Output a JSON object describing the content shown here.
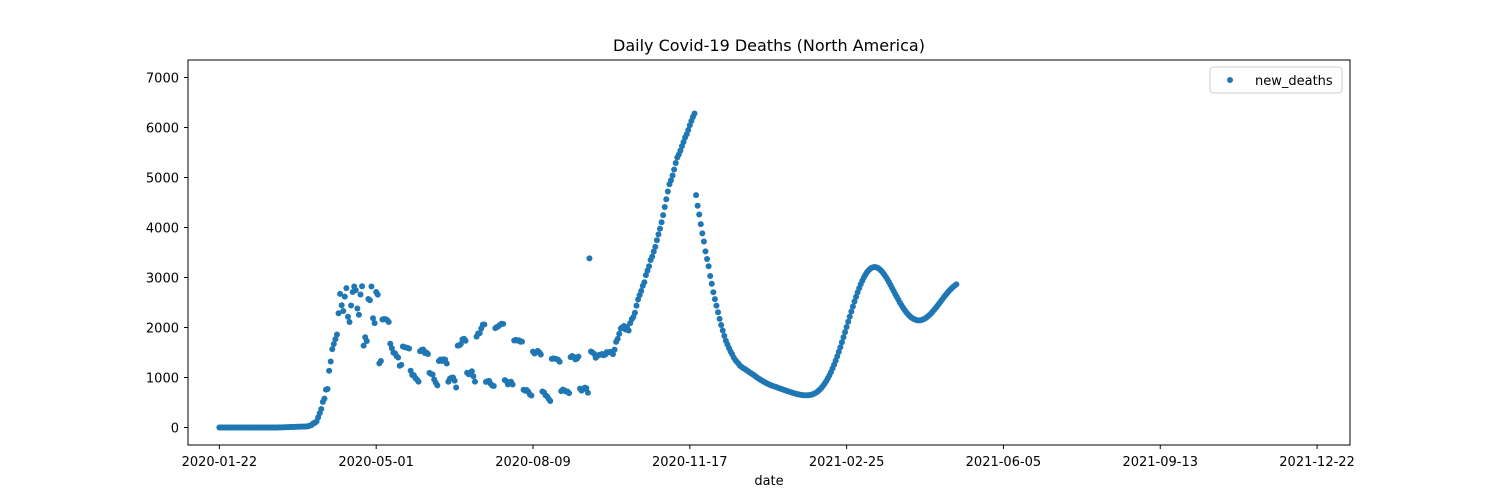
{
  "chart_data": {
    "type": "scatter",
    "title": "Daily Covid-19 Deaths (North America)",
    "xlabel": "date",
    "ylabel": "",
    "x_range": [
      "2020-01-02",
      "2022-01-12"
    ],
    "ylim": [
      -350,
      7350
    ],
    "x_ticks": [
      "2020-01-22",
      "2020-05-01",
      "2020-08-09",
      "2020-11-17",
      "2021-02-25",
      "2021-06-05",
      "2021-09-13",
      "2021-12-22"
    ],
    "y_ticks": [
      0,
      1000,
      2000,
      3000,
      4000,
      5000,
      6000,
      7000
    ],
    "grid": false,
    "legend_position": "top-right",
    "series": [
      {
        "name": "new_deaths",
        "color": "#1f77b4",
        "marker": "circle",
        "start_date": "2020-01-22",
        "y": [
          0,
          0,
          0,
          0,
          0,
          0,
          0,
          0,
          0,
          0,
          0,
          0,
          0,
          0,
          0,
          0,
          0,
          0,
          0,
          0,
          0,
          0,
          0,
          0,
          0,
          0,
          0,
          0,
          0,
          0,
          0,
          0,
          0,
          0,
          0,
          0,
          0,
          0,
          2,
          2,
          3,
          4,
          5,
          7,
          7,
          9,
          10,
          11,
          12,
          14,
          15,
          16,
          17,
          17,
          18,
          20,
          23,
          27,
          43,
          53,
          85,
          95,
          123,
          202,
          287,
          371,
          513,
          578,
          758,
          770,
          1134,
          1320,
          1567,
          1670,
          1767,
          1860,
          2285,
          2673,
          2445,
          2329,
          2617,
          2788,
          2216,
          2109,
          2439,
          2711,
          2819,
          2744,
          2380,
          2254,
          2660,
          2826,
          1638,
          1806,
          1729,
          2569,
          2546,
          2820,
          2185,
          2088,
          2711,
          2657,
          1283,
          1330,
          2161,
          2169,
          2164,
          2150,
          2111,
          1675,
          1585,
          1498,
          1483,
          1428,
          1399,
          1235,
          1253,
          1619,
          1608,
          1600,
          1593,
          1581,
          1135,
          1049,
          1047,
          989,
          957,
          917,
          1526,
          1553,
          1561,
          1491,
          1500,
          1470,
          1092,
          1073,
          1060,
          960,
          895,
          843,
          1331,
          1359,
          1329,
          1362,
          1358,
          1281,
          916,
          975,
          994,
          999,
          937,
          799,
          1638,
          1642,
          1670,
          1763,
          1776,
          1734,
          1095,
          1065,
          1090,
          1124,
          1025,
          917,
          1818,
          1879,
          1887,
          1980,
          2057,
          2060,
          912,
          924,
          932,
          874,
          840,
          831,
          1987,
          2010,
          2025,
          2056,
          2076,
          2072,
          947,
          928,
          863,
          892,
          914,
          859,
          1740,
          1752,
          1737,
          1745,
          1716,
          1718,
          754,
          735,
          749,
          716,
          661,
          640,
          1518,
          1479,
          1502,
          1532,
          1505,
          1460,
          720,
          702,
          645,
          622,
          573,
          529,
          1373,
          1381,
          1374,
          1368,
          1355,
          1314,
          728,
          758,
          744,
          721,
          719,
          688,
          1408,
          1430,
          1412,
          1362,
          1375,
          1418,
          777,
          738,
          767,
          798,
          786,
          694,
          3383,
          1519,
          1500,
          1473,
          1394,
          1429,
          1451,
          1458,
          1469,
          1444,
          1458,
          1508,
          1500,
          1512,
          1508,
          1467,
          1558,
          1713,
          1772,
          1872,
          1981,
          2005,
          2031,
          1961,
          2011,
          1941,
          2088,
          2168,
          2211,
          2296,
          2437,
          2560,
          2648,
          2731,
          2833,
          2904,
          3048,
          3138,
          3225,
          3349,
          3418,
          3519,
          3612,
          3746,
          3862,
          3978,
          4104,
          4247,
          4411,
          4566,
          4719,
          4866,
          4942,
          5040,
          5160,
          5290,
          5400,
          5460,
          5538,
          5628,
          5710,
          5800,
          5864,
          5950,
          6045,
          6130,
          6212,
          6279,
          4648,
          4434,
          4260,
          4068,
          3883,
          3720,
          3523,
          3370,
          3225,
          3030,
          2876,
          2706,
          2568,
          2437,
          2305,
          2172,
          2051,
          1939,
          1832,
          1735,
          1660,
          1587,
          1521,
          1468,
          1400,
          1351,
          1313,
          1281,
          1236,
          1212,
          1191,
          1172,
          1151,
          1130,
          1106,
          1088,
          1066,
          1044,
          1019,
          997,
          977,
          958,
          938,
          920,
          902,
          885,
          869,
          855,
          843,
          831,
          820,
          809,
          798,
          786,
          775,
          764,
          753,
          742,
          731,
          720,
          710,
          700,
          690,
          681,
          672,
          664,
          657,
          652,
          648,
          646,
          645,
          645,
          647,
          652,
          660,
          672,
          688,
          708,
          733,
          762,
          796,
          835,
          879,
          928,
          982,
          1042,
          1108,
          1179,
          1255,
          1336,
          1422,
          1512,
          1606,
          1704,
          1804,
          1907,
          2011,
          2115,
          2218,
          2321,
          2421,
          2519,
          2613,
          2702,
          2786,
          2864,
          2936,
          3000,
          3056,
          3104,
          3143,
          3173,
          3194,
          3206,
          3209,
          3203,
          3189,
          3167,
          3138,
          3102,
          3060,
          3013,
          2962,
          2907,
          2850,
          2791,
          2731,
          2671,
          2612,
          2554,
          2498,
          2445,
          2395,
          2349,
          2307,
          2269,
          2236,
          2208,
          2185,
          2167,
          2154,
          2146,
          2143,
          2145,
          2152,
          2164,
          2181,
          2202,
          2227,
          2255,
          2287,
          2322,
          2359,
          2398,
          2438,
          2480,
          2521,
          2563,
          2604,
          2644,
          2683,
          2720,
          2754,
          2786,
          2815,
          2840,
          2862
        ]
      }
    ]
  }
}
